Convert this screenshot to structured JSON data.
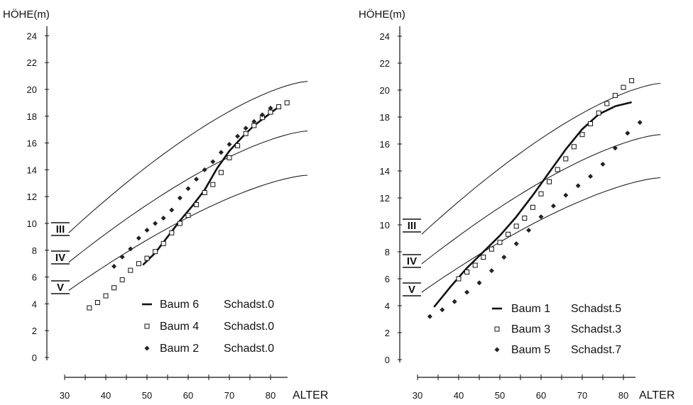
{
  "chart_data": [
    {
      "type": "line",
      "ylabel": "HÖHE(m)",
      "xlabel": "ALTER",
      "xlim": [
        30,
        80
      ],
      "ylim": [
        0,
        24
      ],
      "x_ticks": [
        30,
        40,
        50,
        60,
        70,
        80
      ],
      "y_ticks": [
        0,
        2,
        4,
        6,
        8,
        10,
        12,
        14,
        16,
        18,
        20,
        22,
        24
      ],
      "class_lines": [
        {
          "label": "III",
          "x": [
            31,
            89
          ],
          "y": [
            9.3,
            20.6
          ]
        },
        {
          "label": "IV",
          "x": [
            31,
            89
          ],
          "y": [
            7.1,
            16.9
          ]
        },
        {
          "label": "V",
          "x": [
            31,
            89
          ],
          "y": [
            5.0,
            13.6
          ]
        }
      ],
      "series": [
        {
          "name": "Baum 6",
          "damage": "Schadst.0",
          "marker": "line",
          "x": [
            49,
            52,
            55,
            58,
            61,
            64,
            67,
            70,
            73,
            76,
            79,
            82
          ],
          "y": [
            6.9,
            7.8,
            9.0,
            10.2,
            11.3,
            12.5,
            14.1,
            15.4,
            16.4,
            17.3,
            18.0,
            18.7
          ]
        },
        {
          "name": "Baum 4",
          "damage": "Schadst.0",
          "marker": "square",
          "x": [
            36,
            38,
            40,
            42,
            44,
            46,
            48,
            50,
            52,
            54,
            56,
            58,
            60,
            62,
            64,
            66,
            68,
            70,
            72,
            74,
            76,
            78,
            80,
            82,
            84
          ],
          "y": [
            3.7,
            4.1,
            4.6,
            5.2,
            5.8,
            6.5,
            7.0,
            7.4,
            7.9,
            8.5,
            9.3,
            10.0,
            10.6,
            11.4,
            12.3,
            12.9,
            13.8,
            14.9,
            15.8,
            16.7,
            17.3,
            17.9,
            18.3,
            18.7,
            19.0
          ]
        },
        {
          "name": "Baum 2",
          "damage": "Schadst.0",
          "marker": "diamond",
          "x": [
            42,
            44,
            46,
            48,
            50,
            52,
            54,
            56,
            58,
            60,
            62,
            64,
            66,
            68,
            70,
            72,
            74,
            76,
            78,
            80
          ],
          "y": [
            6.8,
            7.5,
            8.1,
            8.9,
            9.5,
            10.0,
            10.4,
            11.0,
            11.9,
            12.6,
            13.3,
            14.0,
            14.6,
            15.3,
            15.9,
            16.5,
            17.1,
            17.6,
            18.1,
            18.6
          ]
        }
      ],
      "legend": [
        {
          "marker": "line",
          "baum": "Baum 6",
          "schadst": "Schadst.0"
        },
        {
          "marker": "square",
          "baum": "Baum 4",
          "schadst": "Schadst.0"
        },
        {
          "marker": "diamond",
          "baum": "Baum 2",
          "schadst": "Schadst.0"
        }
      ],
      "legend_position": "bottom-right",
      "grid": false
    },
    {
      "type": "line",
      "ylabel": "HÖHE(m)",
      "xlabel": "ALTER",
      "xlim": [
        30,
        80
      ],
      "ylim": [
        0,
        24
      ],
      "x_ticks": [
        30,
        40,
        50,
        60,
        70,
        80
      ],
      "y_ticks": [
        0,
        2,
        4,
        6,
        8,
        10,
        12,
        14,
        16,
        18,
        20,
        22,
        24
      ],
      "class_lines": [
        {
          "label": "III",
          "x": [
            31,
            89
          ],
          "y": [
            9.3,
            20.5
          ]
        },
        {
          "label": "IV",
          "x": [
            31,
            89
          ],
          "y": [
            7.1,
            16.7
          ]
        },
        {
          "label": "V",
          "x": [
            31,
            89
          ],
          "y": [
            5.0,
            13.5
          ]
        }
      ],
      "series": [
        {
          "name": "Baum 1",
          "damage": "Schadst.5",
          "marker": "line",
          "x": [
            34,
            38,
            42,
            46,
            50,
            54,
            58,
            62,
            66,
            70,
            74,
            78,
            82
          ],
          "y": [
            3.9,
            5.4,
            6.8,
            8.0,
            9.2,
            10.6,
            12.2,
            13.9,
            15.6,
            17.1,
            18.2,
            18.8,
            19.1
          ]
        },
        {
          "name": "Baum 3",
          "damage": "Schadst.3",
          "marker": "square",
          "x": [
            40,
            42,
            44,
            46,
            48,
            50,
            52,
            54,
            56,
            58,
            60,
            62,
            64,
            66,
            68,
            70,
            72,
            74,
            76,
            78,
            80,
            82
          ],
          "y": [
            6.0,
            6.5,
            7.0,
            7.6,
            8.2,
            8.7,
            9.3,
            9.9,
            10.5,
            11.3,
            12.3,
            13.2,
            14.1,
            14.9,
            15.8,
            16.7,
            17.5,
            18.3,
            19.0,
            19.6,
            20.2,
            20.7
          ]
        },
        {
          "name": "Baum 5",
          "damage": "Schadst.7",
          "marker": "diamond",
          "x": [
            33,
            36,
            39,
            42,
            45,
            48,
            51,
            54,
            57,
            60,
            63,
            66,
            69,
            72,
            75,
            78,
            81,
            84
          ],
          "y": [
            3.2,
            3.7,
            4.3,
            5.0,
            5.7,
            6.6,
            7.6,
            8.6,
            9.6,
            10.6,
            11.4,
            12.2,
            12.9,
            13.6,
            14.5,
            15.7,
            16.8,
            17.6
          ]
        }
      ],
      "legend": [
        {
          "marker": "line",
          "baum": "Baum 1",
          "schadst": "Schadst.5"
        },
        {
          "marker": "square",
          "baum": "Baum 3",
          "schadst": "Schadst.3"
        },
        {
          "marker": "diamond",
          "baum": "Baum 5",
          "schadst": "Schadst.7"
        }
      ],
      "legend_position": "bottom-right",
      "grid": false
    }
  ]
}
